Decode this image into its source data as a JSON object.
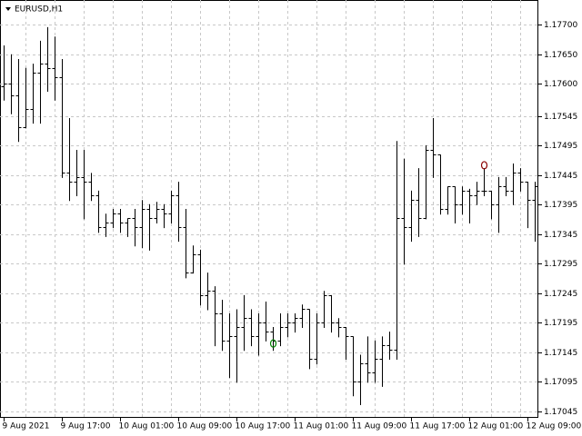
{
  "chart_data": {
    "type": "ohlc",
    "title": "EURUSD,H1",
    "color": "#000000",
    "grid": true,
    "categories": [
      "9 Aug 2021",
      null,
      null,
      null,
      null,
      null,
      null,
      null,
      "9 Aug 17:00",
      null,
      null,
      null,
      null,
      null,
      null,
      null,
      "10 Aug 01:00",
      null,
      null,
      null,
      null,
      null,
      null,
      null,
      "10 Aug 09:00",
      null,
      null,
      null,
      null,
      null,
      null,
      null,
      "10 Aug 17:00",
      null,
      null,
      null,
      null,
      null,
      null,
      null,
      "11 Aug 01:00",
      null,
      null,
      null,
      null,
      null,
      null,
      null,
      "11 Aug 09:00",
      null,
      null,
      null,
      null,
      null,
      null,
      null,
      "11 Aug 17:00",
      null,
      null,
      null,
      null,
      null,
      null,
      null,
      "12 Aug 01:00",
      null,
      null,
      null,
      null,
      null,
      null,
      null,
      "12 Aug 09:00",
      null
    ],
    "open": [
      1.17596,
      1.176,
      1.1758,
      1.17526,
      1.17557,
      1.17619,
      1.17634,
      1.17627,
      1.17611,
      1.17449,
      1.17434,
      1.17442,
      1.17434,
      1.17411,
      1.17357,
      1.17365,
      1.1738,
      1.17365,
      1.17372,
      1.17357,
      1.17388,
      1.17372,
      1.17388,
      1.1738,
      1.17411,
      1.17357,
      1.1728,
      1.17311,
      1.17242,
      1.17249,
      1.17211,
      1.17165,
      1.17172,
      1.17188,
      1.17203,
      1.17172,
      1.17195,
      1.1718,
      1.17165,
      1.17188,
      1.17195,
      1.17203,
      1.17218,
      1.17134,
      1.17195,
      1.17242,
      1.17195,
      1.17188,
      1.17172,
      1.17095,
      1.17126,
      1.17111,
      1.17134,
      1.17157,
      1.17149,
      1.17372,
      1.17357,
      1.17403,
      1.17372,
      1.17488,
      1.1748,
      1.17388,
      1.17426,
      1.17396,
      1.17419,
      1.17411,
      1.17419,
      1.17419,
      1.17396,
      1.17426,
      1.17419,
      1.17449,
      1.17434,
      1.17403
    ],
    "high": [
      1.17665,
      1.1765,
      1.17642,
      1.17627,
      1.17634,
      1.17673,
      1.17696,
      1.1768,
      1.17642,
      1.17542,
      1.17488,
      1.17488,
      1.17449,
      1.17419,
      1.1738,
      1.17388,
      1.17388,
      1.17372,
      1.17388,
      1.17403,
      1.17396,
      1.174,
      1.17396,
      1.17419,
      1.17434,
      1.17388,
      1.17326,
      1.17319,
      1.1728,
      1.17257,
      1.17234,
      1.17211,
      1.17218,
      1.17242,
      1.17218,
      1.17211,
      1.17231,
      1.17188,
      1.17211,
      1.17211,
      1.17211,
      1.17226,
      1.17218,
      1.17211,
      1.17249,
      1.17242,
      1.17203,
      1.17188,
      1.17172,
      1.17141,
      1.17172,
      1.17165,
      1.17172,
      1.1718,
      1.17503,
      1.17473,
      1.17419,
      1.17457,
      1.17496,
      1.17542,
      1.1748,
      1.17426,
      1.17426,
      1.17426,
      1.17422,
      1.17434,
      1.17457,
      1.17419,
      1.17442,
      1.17442,
      1.17465,
      1.17457,
      1.17434,
      1.17434
    ],
    "low": [
      1.17573,
      1.1755,
      1.17503,
      1.17526,
      1.17534,
      1.17534,
      1.17588,
      1.17573,
      1.17442,
      1.17403,
      1.17411,
      1.17372,
      1.17403,
      1.17349,
      1.17342,
      1.17357,
      1.17349,
      1.17342,
      1.17326,
      1.17323,
      1.17319,
      1.17365,
      1.17357,
      1.17365,
      1.17334,
      1.17272,
      1.1728,
      1.17226,
      1.17218,
      1.17157,
      1.17149,
      1.17103,
      1.17095,
      1.17149,
      1.17157,
      1.17141,
      1.17165,
      1.17149,
      1.17157,
      1.17172,
      1.1718,
      1.17188,
      1.17118,
      1.17126,
      1.17188,
      1.1718,
      1.17172,
      1.17134,
      1.17072,
      1.17057,
      1.17095,
      1.17095,
      1.17088,
      1.17134,
      1.17134,
      1.17295,
      1.17334,
      1.17342,
      1.17372,
      1.17442,
      1.1738,
      1.1738,
      1.17365,
      1.1738,
      1.17365,
      1.17396,
      1.17411,
      1.17372,
      1.17349,
      1.17411,
      1.17396,
      1.17419,
      1.17357,
      1.17334
    ],
    "close": [
      1.176,
      1.1758,
      1.17526,
      1.17557,
      1.17619,
      1.17634,
      1.17627,
      1.17611,
      1.17449,
      1.17434,
      1.17442,
      1.17434,
      1.17411,
      1.17357,
      1.17365,
      1.1738,
      1.17365,
      1.17372,
      1.17357,
      1.17388,
      1.17372,
      1.17388,
      1.1738,
      1.17411,
      1.17357,
      1.1728,
      1.17311,
      1.17242,
      1.17249,
      1.17211,
      1.17165,
      1.17172,
      1.17188,
      1.17203,
      1.17172,
      1.17195,
      1.1718,
      1.17165,
      1.17188,
      1.17195,
      1.17203,
      1.17218,
      1.17134,
      1.17195,
      1.17242,
      1.17195,
      1.17188,
      1.17172,
      1.17095,
      1.17126,
      1.17111,
      1.17134,
      1.17157,
      1.17149,
      1.17372,
      1.17357,
      1.17403,
      1.17372,
      1.17488,
      1.1748,
      1.17388,
      1.17426,
      1.17396,
      1.17419,
      1.17411,
      1.17419,
      1.17419,
      1.17396,
      1.17426,
      1.17419,
      1.17449,
      1.17434,
      1.17403,
      1.17426
    ],
    "markers": [
      {
        "category": 37,
        "value": 1.1716,
        "color": "#008000"
      },
      {
        "category": 66,
        "value": 1.17462,
        "color": "#8b0000"
      }
    ],
    "ylim": [
      1.17034,
      1.17742
    ],
    "yticks": [
      {
        "value": 1.177,
        "label": "1.17700"
      },
      {
        "value": 1.1765,
        "label": "1.17650"
      },
      {
        "value": 1.176,
        "label": "1.17600"
      },
      {
        "value": 1.17545,
        "label": "1.17545"
      },
      {
        "value": 1.17495,
        "label": "1.17495"
      },
      {
        "value": 1.17445,
        "label": "1.17445"
      },
      {
        "value": 1.17395,
        "label": "1.17395"
      },
      {
        "value": 1.17345,
        "label": "1.17345"
      },
      {
        "value": 1.17295,
        "label": "1.17295"
      },
      {
        "value": 1.17245,
        "label": "1.17245"
      },
      {
        "value": 1.17195,
        "label": "1.17195"
      },
      {
        "value": 1.17145,
        "label": "1.17145"
      },
      {
        "value": 1.17095,
        "label": "1.17095"
      },
      {
        "value": 1.17045,
        "label": "1.17045"
      }
    ]
  }
}
